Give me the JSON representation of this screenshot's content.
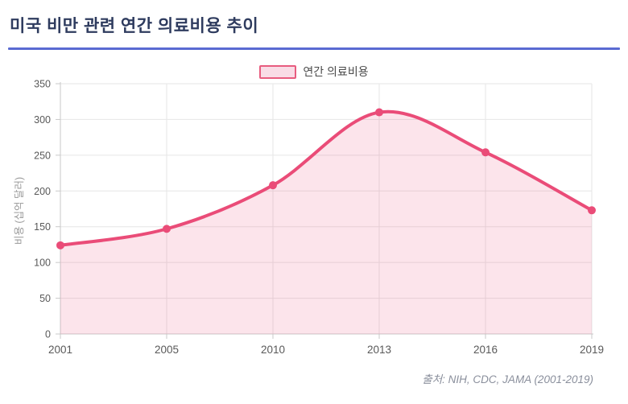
{
  "header": {
    "title": "미국 비만 관련 연간 의료비용 추이"
  },
  "legend": {
    "label": "연간 의료비용"
  },
  "footer": {
    "source": "출처: NIH, CDC, JAMA (2001-2019)"
  },
  "colors": {
    "title": "#2e3b5e",
    "divider": "#5a6ad2",
    "line": "#ea4c78",
    "area_fill": "rgba(235,76,119,0.15)",
    "legend_fill": "#f9dce6",
    "legend_border": "#e85c7f",
    "grid": "#e6e6e6",
    "axis": "#c9c9c9",
    "tick_label": "#595959",
    "axis_title": "#999999",
    "source_text": "#8a8f9c"
  },
  "chart_data": {
    "type": "area",
    "categories": [
      "2001",
      "2005",
      "2010",
      "2013",
      "2016",
      "2019"
    ],
    "series": [
      {
        "name": "연간 의료비용",
        "values": [
          124,
          147,
          208,
          310,
          254,
          173
        ]
      }
    ],
    "title": "미국 비만 관련 연간 의료비용 추이",
    "xlabel": "",
    "ylabel": "비용 (십억 달러)",
    "ylim": [
      0,
      350
    ],
    "ytick_step": 50,
    "yticks": [
      0,
      50,
      100,
      150,
      200,
      250,
      300,
      350
    ],
    "grid": true,
    "legend_position": "top-center",
    "smooth": true,
    "point_radius": 5,
    "line_width": 4
  }
}
